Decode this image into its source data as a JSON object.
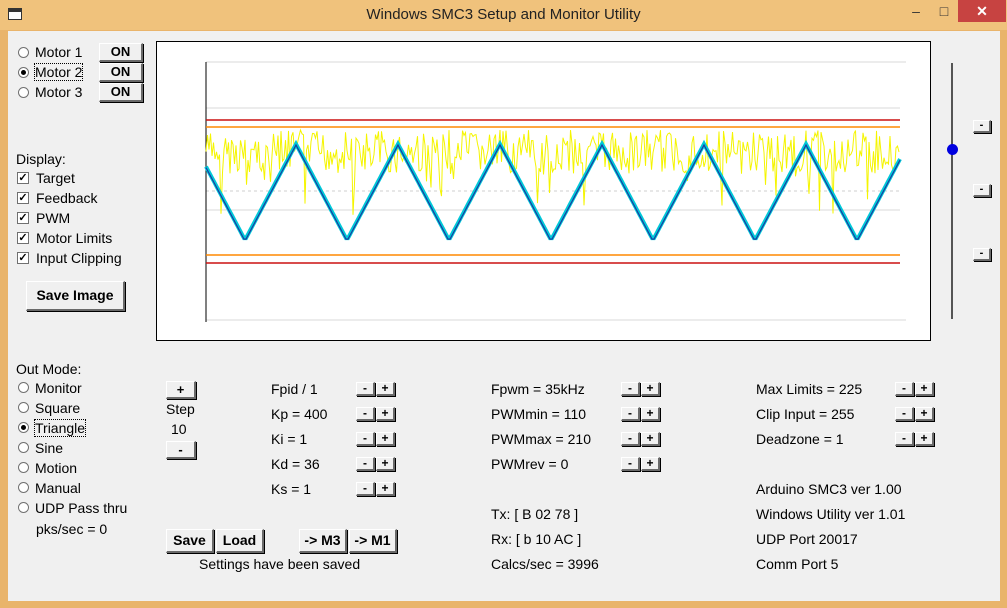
{
  "window": {
    "title": "Windows SMC3 Setup and Monitor Utility",
    "minimize": "–",
    "maximize": "□",
    "close": "✕"
  },
  "motors": [
    {
      "label": "Motor 1",
      "selected": false,
      "button": "ON"
    },
    {
      "label": "Motor 2",
      "selected": true,
      "button": "ON"
    },
    {
      "label": "Motor 3",
      "selected": false,
      "button": "ON"
    }
  ],
  "display": {
    "heading": "Display:",
    "checks": [
      {
        "label": "Target",
        "checked": true
      },
      {
        "label": "Feedback",
        "checked": true
      },
      {
        "label": "PWM",
        "checked": true
      },
      {
        "label": "Motor Limits",
        "checked": true
      },
      {
        "label": "Input Clipping",
        "checked": true
      }
    ],
    "save_image": "Save Image"
  },
  "out_mode": {
    "heading": "Out Mode:",
    "options": [
      {
        "label": "Monitor",
        "selected": false
      },
      {
        "label": "Square",
        "selected": false
      },
      {
        "label": "Triangle",
        "selected": true
      },
      {
        "label": "Sine",
        "selected": false
      },
      {
        "label": "Motion",
        "selected": false
      },
      {
        "label": "Manual",
        "selected": false
      },
      {
        "label": "UDP Pass thru",
        "selected": false
      }
    ],
    "pks": "pks/sec = 0"
  },
  "step": {
    "plus": "+",
    "label": "Step",
    "value": "10",
    "minus": "-"
  },
  "pid": [
    {
      "label": "Fpid / 1"
    },
    {
      "label": "Kp = 400"
    },
    {
      "label": "Ki = 1"
    },
    {
      "label": "Kd = 36"
    },
    {
      "label": "Ks = 1"
    }
  ],
  "pwm": [
    {
      "label": "Fpwm = 35kHz"
    },
    {
      "label": "PWMmin = 110"
    },
    {
      "label": "PWMmax = 210"
    },
    {
      "label": "PWMrev = 0"
    }
  ],
  "limits": [
    {
      "label": "Max Limits = 225"
    },
    {
      "label": "Clip Input = 255"
    },
    {
      "label": "Deadzone = 1"
    }
  ],
  "info": [
    "Arduino SMC3 ver 1.00",
    "Windows Utility ver 1.01",
    "UDP Port 20017",
    "Comm Port 5"
  ],
  "comms": {
    "tx": "Tx: [ B 02 78 ]",
    "rx": "Rx: [ b 10 AC ]",
    "calcs": "Calcs/sec = 3996"
  },
  "buttons": {
    "save": "Save",
    "load": "Load",
    "to_m3": "-> M3",
    "to_m1": "-> M1",
    "minus": "-",
    "plus": "+"
  },
  "status": "Settings have been saved",
  "colors": {
    "target": "#00c8d8",
    "feedback": "#1a3aa0",
    "pwm": "#f5f500",
    "limit": "#cc1111",
    "clip": "#ff8800",
    "grid": "#d8d8d8"
  }
}
